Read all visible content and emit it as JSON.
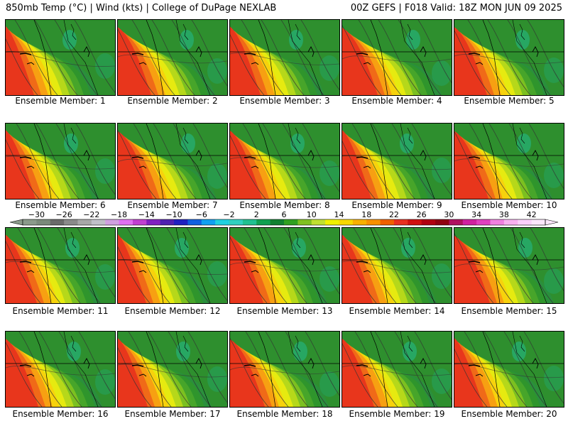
{
  "header": {
    "left": "850mb Temp (°C) | Wind (kts) | College of DuPage NEXLAB",
    "right": "00Z GEFS | F018 Valid: 18Z MON JUN 09 2025"
  },
  "panels": [
    {
      "label": "Ensemble Member: 1"
    },
    {
      "label": "Ensemble Member: 2"
    },
    {
      "label": "Ensemble Member: 3"
    },
    {
      "label": "Ensemble Member: 4"
    },
    {
      "label": "Ensemble Member: 5"
    },
    {
      "label": "Ensemble Member: 6"
    },
    {
      "label": "Ensemble Member: 7"
    },
    {
      "label": "Ensemble Member: 8"
    },
    {
      "label": "Ensemble Member: 9"
    },
    {
      "label": "Ensemble Member: 10"
    },
    {
      "label": "Ensemble Member: 11"
    },
    {
      "label": "Ensemble Member: 12"
    },
    {
      "label": "Ensemble Member: 13"
    },
    {
      "label": "Ensemble Member: 14"
    },
    {
      "label": "Ensemble Member: 15"
    },
    {
      "label": "Ensemble Member: 16"
    },
    {
      "label": "Ensemble Member: 17"
    },
    {
      "label": "Ensemble Member: 18"
    },
    {
      "label": "Ensemble Member: 19"
    },
    {
      "label": "Ensemble Member: 20"
    }
  ],
  "colorbar": {
    "min": -32,
    "max": 44,
    "step": 2,
    "tick_labels": [
      "-30",
      "-26",
      "-22",
      "-18",
      "-14",
      "-10",
      "-6",
      "-2",
      "2",
      "6",
      "10",
      "14",
      "18",
      "22",
      "26",
      "30",
      "34",
      "38",
      "42"
    ],
    "colors": [
      "#8a9a8a",
      "#7a8a7a",
      "#6a6a6a",
      "#8a8a8a",
      "#a8a8a8",
      "#c0c0c8",
      "#d0a0e0",
      "#e070f0",
      "#c040d0",
      "#8020c0",
      "#5020b0",
      "#2020c0",
      "#1060e0",
      "#10a0f0",
      "#20d0e0",
      "#30d0c0",
      "#20c090",
      "#10a050",
      "#108030",
      "#30a020",
      "#80c020",
      "#c0e030",
      "#f0f000",
      "#f8d800",
      "#f8b000",
      "#f89000",
      "#f06000",
      "#e83020",
      "#d01010",
      "#b00010",
      "#900010",
      "#b01060",
      "#d020a0",
      "#e040c0",
      "#f080e0",
      "#f8b0f0",
      "#fad0fa",
      "#fce6fc"
    ]
  }
}
